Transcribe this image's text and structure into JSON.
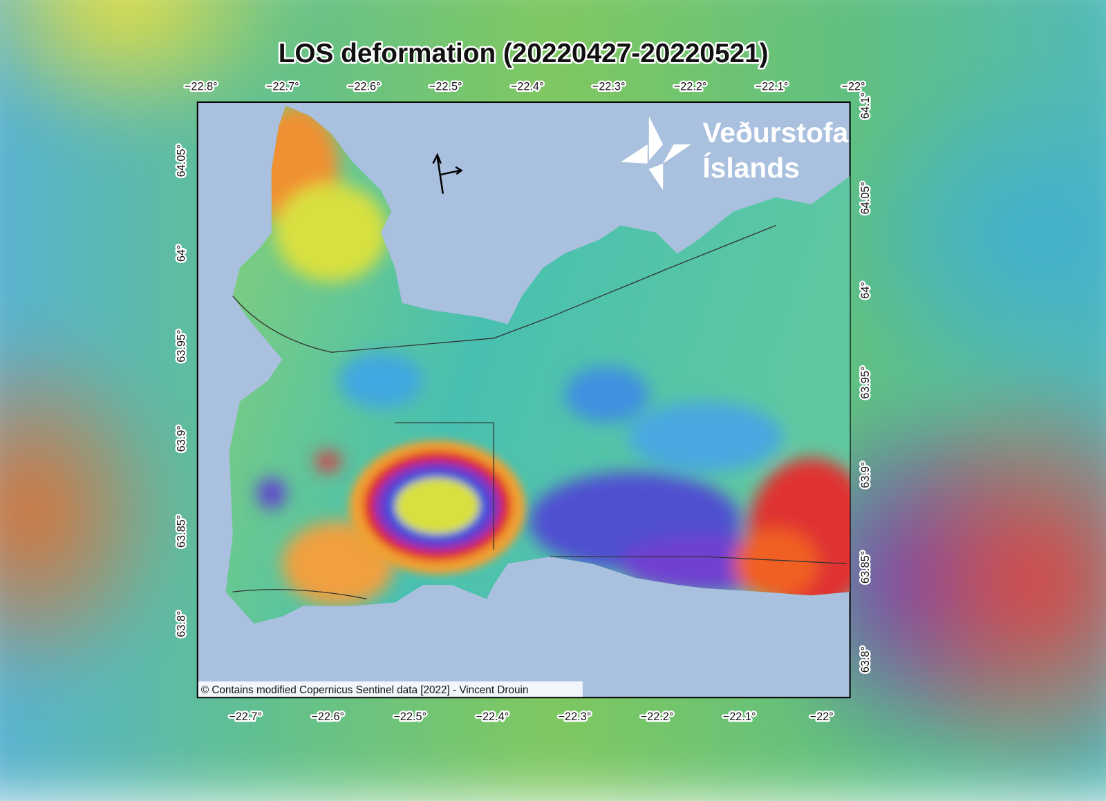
{
  "title": "LOS deformation (20220427-20220521)",
  "axes": {
    "top": [
      "−22.8°",
      "−22.7°",
      "−22.6°",
      "−22.5°",
      "−22.4°",
      "−22.3°",
      "−22.2°",
      "−22.1°",
      "−22°"
    ],
    "bottom": [
      "−22.7°",
      "−22.6°",
      "−22.5°",
      "−22.4°",
      "−22.3°",
      "−22.2°",
      "−22.1°",
      "−22°"
    ],
    "left": [
      "64.05°",
      "64°",
      "63.95°",
      "63.9°",
      "63.85°",
      "63.8°"
    ],
    "right": [
      "64.1°",
      "64.05°",
      "64°",
      "63.95°",
      "63.9°",
      "63.85°",
      "63.8°"
    ]
  },
  "logo": {
    "line1": "Veðurstofa",
    "line2": "Íslands"
  },
  "credit": "© Contains modified Copernicus Sentinel data [2022] - Vincent Drouin"
}
